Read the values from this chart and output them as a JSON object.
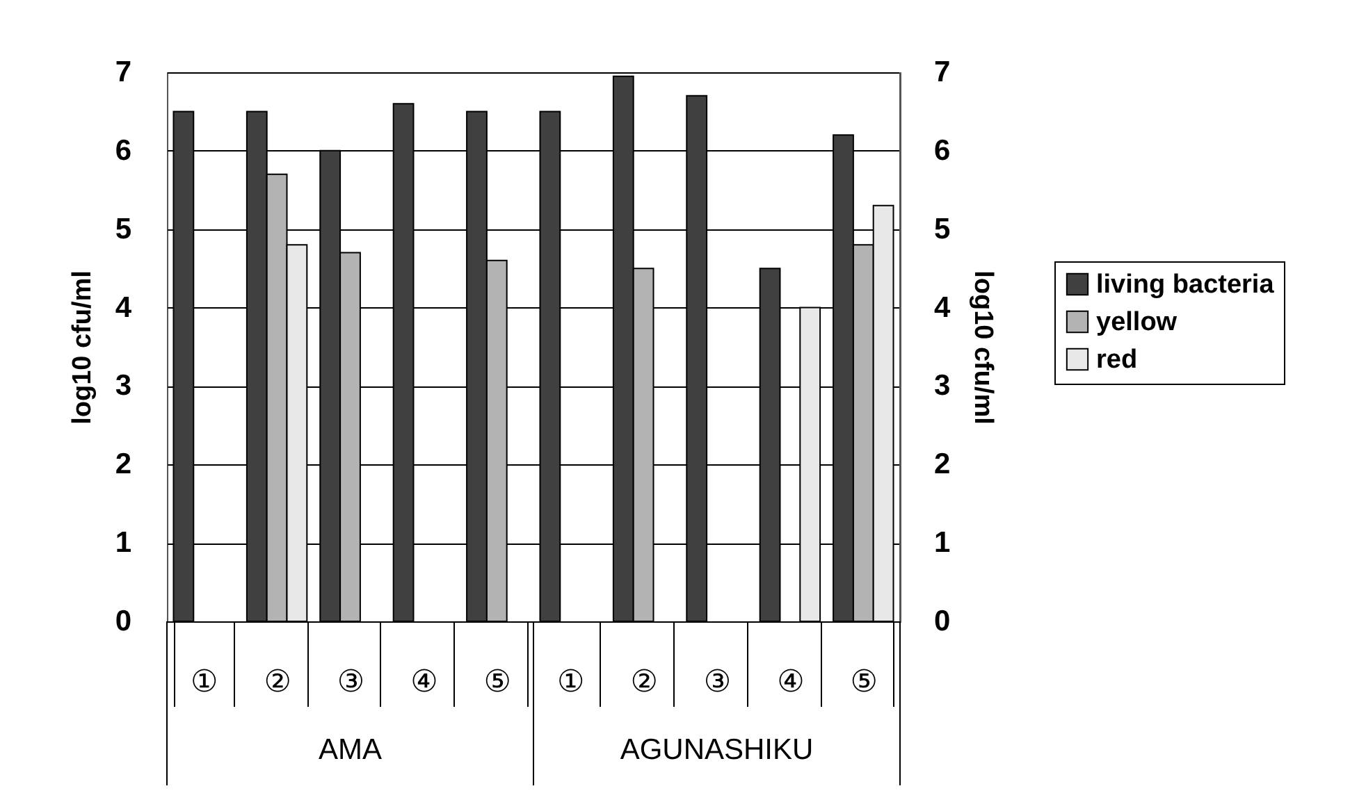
{
  "chart_data": {
    "type": "bar",
    "categories": [
      "①",
      "②",
      "③",
      "④",
      "⑤",
      "①",
      "②",
      "③",
      "④",
      "⑤"
    ],
    "series": [
      {
        "name": "living bacteria",
        "color": "#404040",
        "values": [
          6.5,
          6.5,
          6.0,
          6.6,
          6.5,
          6.5,
          6.95,
          6.7,
          4.5,
          6.2
        ]
      },
      {
        "name": "yellow",
        "color": "#b3b3b3",
        "values": [
          null,
          5.7,
          4.7,
          null,
          4.6,
          null,
          4.5,
          null,
          null,
          4.8
        ]
      },
      {
        "name": "red",
        "color": "#e8e8e8",
        "values": [
          null,
          4.8,
          null,
          null,
          null,
          null,
          null,
          null,
          4.0,
          5.3
        ]
      }
    ],
    "ylabel": "log10 cfu/ml",
    "y2label": "log10 cfu/ml",
    "ylim": [
      0,
      7
    ],
    "yticks": [
      0,
      1,
      2,
      3,
      4,
      5,
      6,
      7
    ],
    "y2lim": [
      0,
      7
    ],
    "y2ticks": [
      0,
      1,
      2,
      3,
      4,
      5,
      6,
      7
    ],
    "grid": "y",
    "legend": "right",
    "annotations": [
      "AMA",
      "AGUNASHIKU"
    ]
  }
}
